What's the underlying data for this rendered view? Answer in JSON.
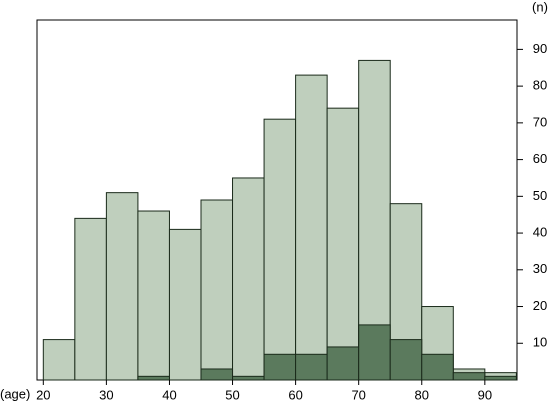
{
  "chart_data": {
    "type": "histogram",
    "x_label": "(age)",
    "y_label": "(n)",
    "bins": [
      20,
      25,
      30,
      35,
      40,
      45,
      50,
      55,
      60,
      65,
      70,
      75,
      80,
      85,
      90,
      95
    ],
    "series": [
      {
        "color": "#bfcfbd",
        "values": [
          11,
          44,
          51,
          46,
          41,
          49,
          55,
          71,
          83,
          74,
          87,
          48,
          20,
          3,
          2
        ]
      },
      {
        "color": "#5b7a5d",
        "values": [
          0,
          0,
          0,
          1,
          0,
          3,
          1,
          7,
          7,
          9,
          15,
          11,
          7,
          2,
          1
        ]
      }
    ],
    "xlim": [
      19,
      95.1
    ],
    "xticks": [
      20,
      30,
      40,
      50,
      60,
      70,
      80,
      90
    ],
    "ylim": [
      0,
      98
    ],
    "yticks": [
      10,
      20,
      30,
      40,
      50,
      60,
      70,
      80,
      90
    ]
  }
}
